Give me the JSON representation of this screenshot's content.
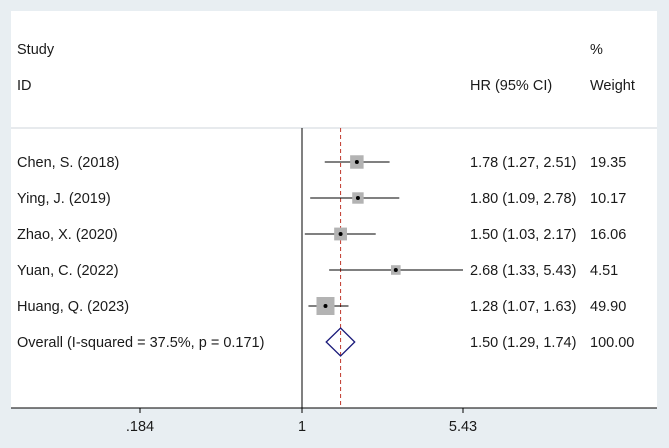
{
  "chart_data": {
    "type": "forest",
    "header": {
      "col1_line1": "Study",
      "col1_line2": "ID",
      "col2": "HR (95% CI)",
      "col3_line1": "%",
      "col3_line2": "Weight"
    },
    "studies": [
      {
        "id": "Chen, S. (2018)",
        "hr": 1.78,
        "lower": 1.27,
        "upper": 2.51,
        "ci_text": "1.78 (1.27, 2.51)",
        "weight": "19.35"
      },
      {
        "id": "Ying, J. (2019)",
        "hr": 1.8,
        "lower": 1.09,
        "upper": 2.78,
        "ci_text": "1.80 (1.09, 2.78)",
        "weight": "10.17"
      },
      {
        "id": "Zhao, X. (2020)",
        "hr": 1.5,
        "lower": 1.03,
        "upper": 2.17,
        "ci_text": "1.50 (1.03, 2.17)",
        "weight": "16.06"
      },
      {
        "id": "Yuan, C. (2022)",
        "hr": 2.68,
        "lower": 1.33,
        "upper": 5.43,
        "ci_text": "2.68 (1.33, 5.43)",
        "weight": "4.51"
      },
      {
        "id": "Huang, Q. (2023)",
        "hr": 1.28,
        "lower": 1.07,
        "upper": 1.63,
        "ci_text": "1.28 (1.07, 1.63)",
        "weight": "49.90"
      }
    ],
    "overall": {
      "label": "Overall  (I-squared = 37.5%, p = 0.171)",
      "hr": 1.5,
      "lower": 1.29,
      "upper": 1.74,
      "ci_text": "1.50 (1.29, 1.74)",
      "weight": "100.00"
    },
    "x_axis": {
      "scale": "log",
      "ticks": [
        {
          "value": 0.184,
          "label": ".184"
        },
        {
          "value": 1,
          "label": "1"
        },
        {
          "value": 5.43,
          "label": "5.43"
        }
      ],
      "range": [
        0.184,
        5.43
      ]
    },
    "null_line": 1,
    "colors": {
      "background": "#e8eef2",
      "plot_area": "#ffffff",
      "box": "#b3b3b3",
      "overall_line": "#c0392b",
      "diamond": "#1a1a7a",
      "text": "#1a1a1a"
    }
  }
}
